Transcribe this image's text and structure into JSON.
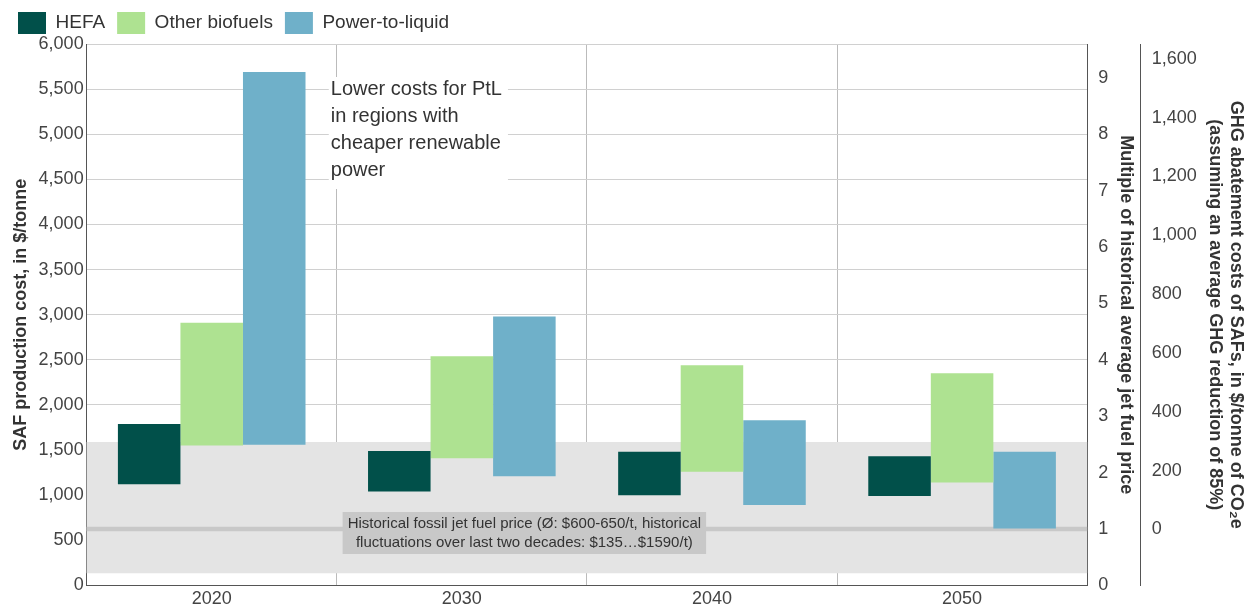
{
  "chart_data": {
    "type": "bar",
    "categories": [
      "2020",
      "2030",
      "2040",
      "2050"
    ],
    "series": [
      {
        "name": "HEFA",
        "color": "#01504a",
        "base": [
          1120,
          1040,
          1000,
          990
        ],
        "values": [
          670,
          450,
          480,
          440
        ]
      },
      {
        "name": "Other biofuels",
        "color": "#aee291",
        "base": [
          1550,
          1410,
          1260,
          1140
        ],
        "values": [
          1360,
          1130,
          1180,
          1210
        ]
      },
      {
        "name": "Power-to-liquid",
        "color": "#6fb0c9",
        "base": [
          1560,
          1210,
          890,
          630
        ],
        "values": [
          4130,
          1770,
          940,
          850
        ]
      }
    ],
    "ylabel": "SAF production cost, in $/tonne",
    "y2label": "Multiple of historical average jet fuel price",
    "y3label": "GHG abatement costs of SAFs, in $/tonne of CO₂e\n(assuming an average GHG reduction of 85%)",
    "ylim": [
      0,
      6000
    ],
    "yticks": [
      0,
      500,
      {
        "value": 1000,
        "label": "1,000"
      },
      {
        "value": 1500,
        "label": "1,500"
      },
      {
        "value": 2000,
        "label": "2,000"
      },
      {
        "value": 2500,
        "label": "2,500"
      },
      {
        "value": 3000,
        "label": "3,000"
      },
      {
        "value": 3500,
        "label": "3,500"
      },
      {
        "value": 4000,
        "label": "4,000"
      },
      {
        "value": 4500,
        "label": "4,500"
      },
      {
        "value": 5000,
        "label": "5,000"
      },
      {
        "value": 5500,
        "label": "5,500"
      },
      {
        "value": 6000,
        "label": "6,000"
      }
    ],
    "y2lim": [
      0,
      9.6
    ],
    "y2ticks": [
      0,
      1,
      2,
      3,
      4,
      5,
      6,
      7,
      8,
      9
    ],
    "y3lim": [
      -190,
      1650
    ],
    "y3ticks": [
      0,
      200,
      400,
      600,
      800,
      {
        "value": 1000,
        "label": "1,000"
      },
      {
        "value": 1200,
        "label": "1,200"
      },
      {
        "value": 1400,
        "label": "1,400"
      },
      {
        "value": 1600,
        "label": "1,600"
      }
    ],
    "bands": [
      {
        "axis": "y",
        "from": 135,
        "to": 1590,
        "color": "#e4e4e4"
      },
      {
        "axis": "y",
        "from": 600,
        "to": 650,
        "color": "#c8c8c8",
        "label": "Historical fossil jet fuel price (Ø: $600-650/t, historical fluctuations over last two decades: $135…$1590/t)"
      }
    ],
    "annotations": [
      "Lower costs for PtL in regions with cheaper renewable power"
    ],
    "grid": true,
    "legend": "top left"
  }
}
